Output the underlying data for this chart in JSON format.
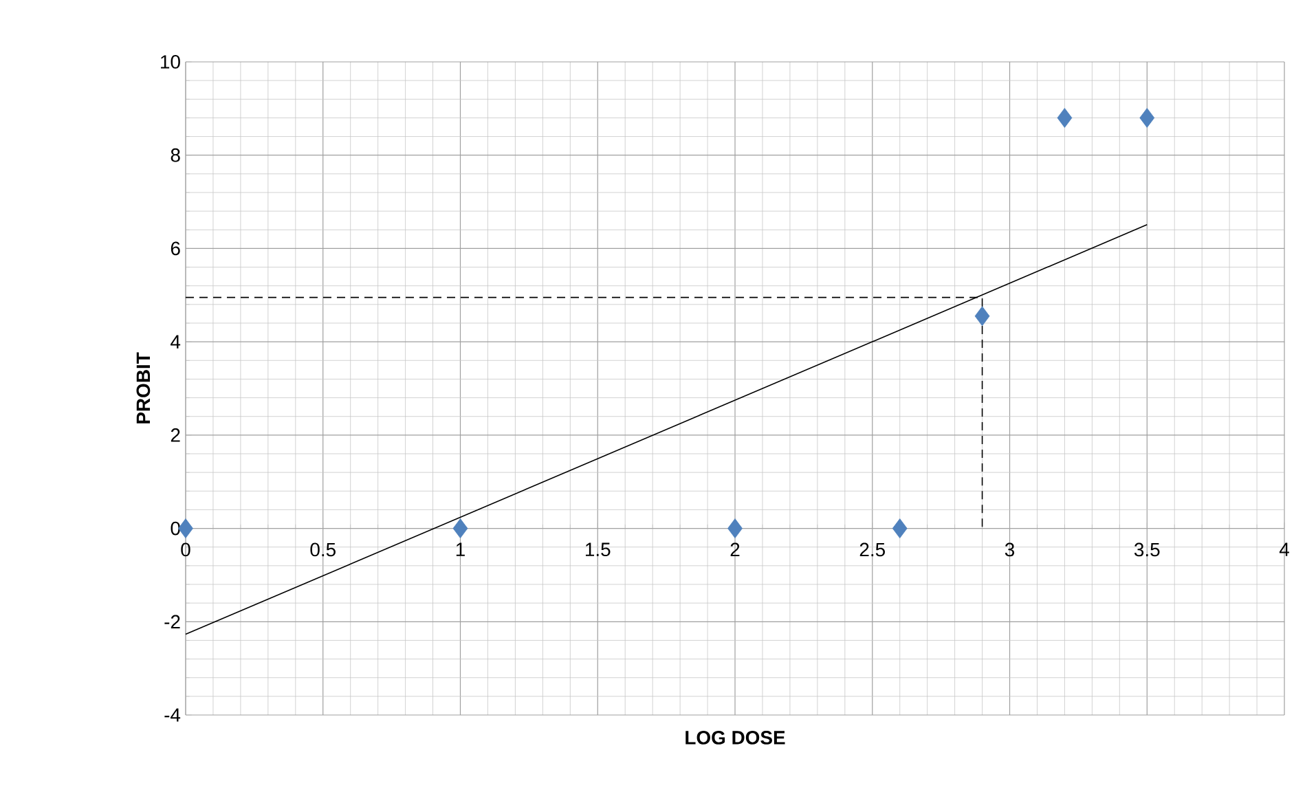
{
  "chart_data": {
    "type": "scatter",
    "xlabel": "LOG DOSE",
    "ylabel": "PROBIT",
    "xlim": [
      0,
      4
    ],
    "ylim": [
      -4,
      10
    ],
    "xticks": [
      0,
      0.5,
      1,
      1.5,
      2,
      2.5,
      3,
      3.5,
      4
    ],
    "yticks": [
      -4,
      -2,
      0,
      2,
      4,
      6,
      8,
      10
    ],
    "grid": true,
    "marker": "diamond",
    "series": [
      {
        "color": "#4f81bd",
        "x": [
          0,
          1,
          2,
          2.6,
          2.9,
          3.2,
          3.5
        ],
        "values": [
          0,
          0,
          0,
          0,
          4.55,
          8.8,
          8.8
        ]
      },
      {
        "type": "line",
        "color": "#000000",
        "marker": "none",
        "line_style": "solid",
        "x": [
          0,
          3.5
        ],
        "values": [
          -2.27,
          6.51
        ]
      },
      {
        "type": "line",
        "color": "#000000",
        "marker": "none",
        "line_style": "dashed",
        "x": [
          0,
          2.9,
          2.9
        ],
        "values": [
          4.95,
          4.95,
          0
        ]
      }
    ]
  }
}
